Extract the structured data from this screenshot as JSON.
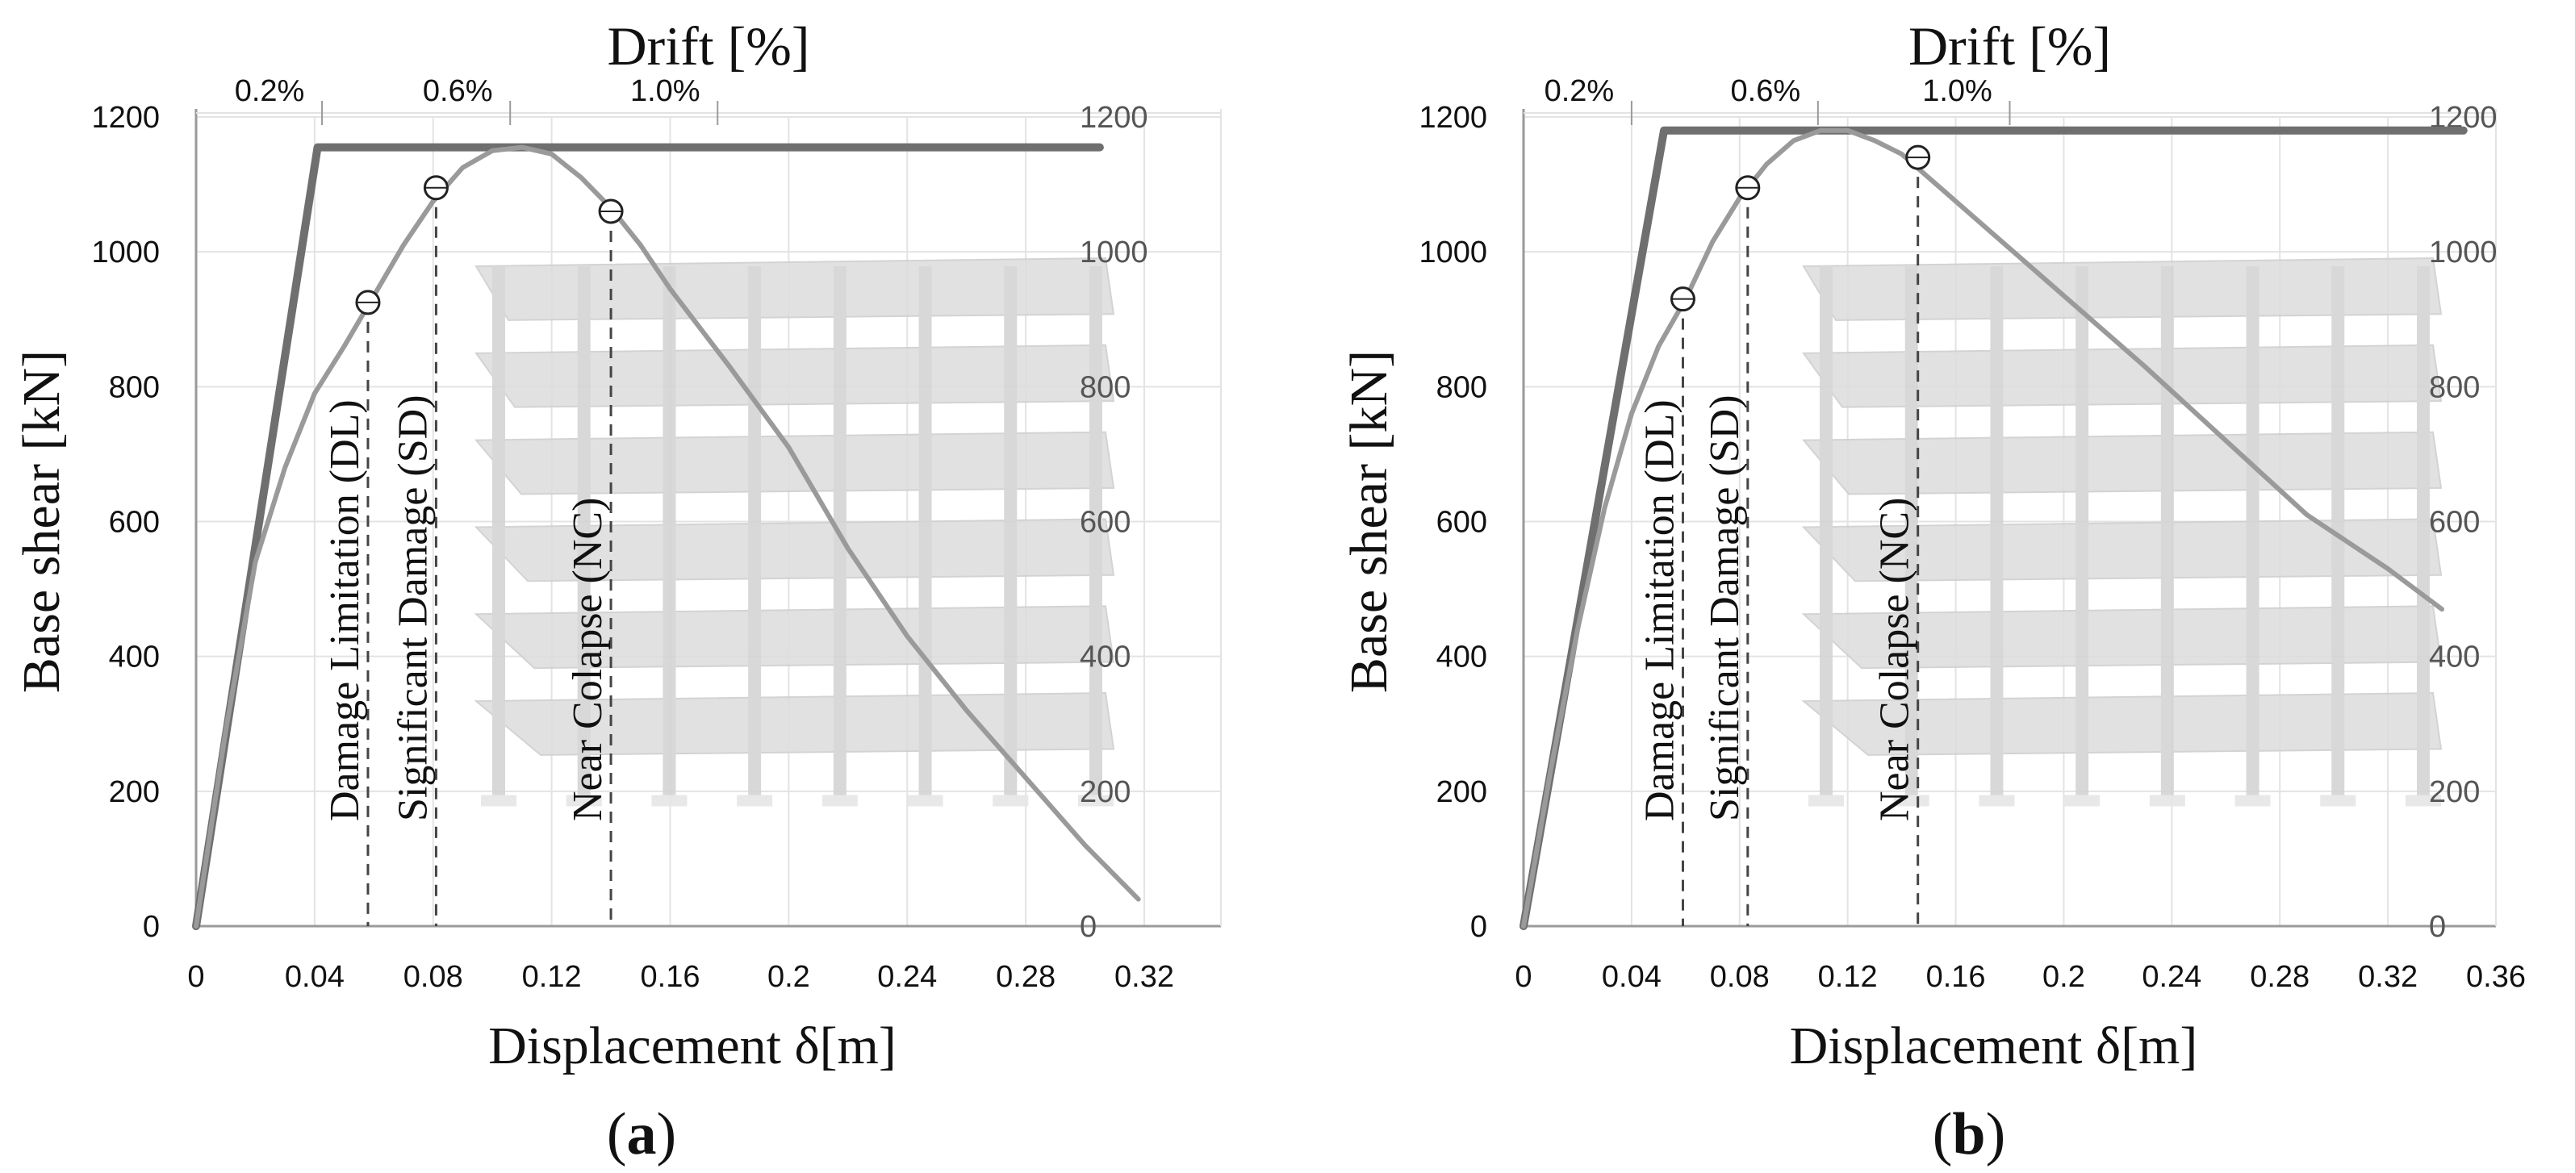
{
  "chart_data": [
    {
      "id": "a",
      "type": "line",
      "caption_letter": "a",
      "top_title": "Drift [%]",
      "xlabel": "Displacement δ[m]",
      "ylabel": "Base shear [kN]",
      "xlim": [
        0,
        0.32
      ],
      "ylim": [
        0,
        1200
      ],
      "x_ticks": [
        "0",
        "0.04",
        "0.08",
        "0.12",
        "0.16",
        "0.2",
        "0.24",
        "0.28",
        "0.32"
      ],
      "y_ticks": [
        "0",
        "200",
        "400",
        "600",
        "800",
        "1000",
        "1200"
      ],
      "y_ticks_right": [
        "0",
        "200",
        "400",
        "600",
        "800",
        "1000",
        "1200"
      ],
      "drift_ticks": [
        {
          "label": "0.2%",
          "x": 0.0425
        },
        {
          "label": "0.6%",
          "x": 0.106
        },
        {
          "label": "1.0%",
          "x": 0.176
        }
      ],
      "series": [
        {
          "style": "bilinear",
          "x": [
            0,
            0.041,
            0.305
          ],
          "y": [
            0,
            1155,
            1155
          ]
        },
        {
          "style": "capacity",
          "x": [
            0,
            0.01,
            0.02,
            0.03,
            0.04,
            0.05,
            0.06,
            0.07,
            0.08,
            0.09,
            0.1,
            0.11,
            0.12,
            0.13,
            0.14,
            0.15,
            0.16,
            0.18,
            0.2,
            0.22,
            0.24,
            0.26,
            0.28,
            0.3,
            0.318
          ],
          "y": [
            0,
            290,
            540,
            680,
            790,
            860,
            935,
            1010,
            1075,
            1125,
            1150,
            1155,
            1145,
            1110,
            1065,
            1010,
            945,
            830,
            710,
            560,
            430,
            320,
            220,
            120,
            40
          ]
        }
      ],
      "limit_states": [
        {
          "label": "Damage Limitation (DL)",
          "x": 0.058,
          "y": 925
        },
        {
          "label": "Significant Damage (SD)",
          "x": 0.081,
          "y": 1095
        },
        {
          "label": "Near Colapse (NC)",
          "x": 0.14,
          "y": 1060
        }
      ]
    },
    {
      "id": "b",
      "type": "line",
      "caption_letter": "b",
      "top_title": "Drift [%]",
      "xlabel": "Displacement δ[m]",
      "ylabel": "Base shear [kN]",
      "xlim": [
        0,
        0.36
      ],
      "ylim": [
        0,
        1200
      ],
      "x_ticks": [
        "0",
        "0.04",
        "0.08",
        "0.12",
        "0.16",
        "0.2",
        "0.24",
        "0.28",
        "0.32",
        "0.36"
      ],
      "y_ticks": [
        "0",
        "200",
        "400",
        "600",
        "800",
        "1000",
        "1200"
      ],
      "y_ticks_right": [
        "0",
        "200",
        "400",
        "600",
        "800",
        "1000",
        "1200"
      ],
      "drift_ticks": [
        {
          "label": "0.2%",
          "x": 0.04
        },
        {
          "label": "0.6%",
          "x": 0.109
        },
        {
          "label": "1.0%",
          "x": 0.18
        }
      ],
      "series": [
        {
          "style": "bilinear",
          "x": [
            0,
            0.052,
            0.348
          ],
          "y": [
            0,
            1180,
            1180
          ]
        },
        {
          "style": "capacity",
          "x": [
            0,
            0.01,
            0.02,
            0.03,
            0.04,
            0.05,
            0.06,
            0.07,
            0.08,
            0.09,
            0.1,
            0.11,
            0.12,
            0.13,
            0.14,
            0.15,
            0.17,
            0.2,
            0.23,
            0.26,
            0.29,
            0.32,
            0.34
          ],
          "y": [
            0,
            230,
            440,
            620,
            760,
            860,
            930,
            1015,
            1080,
            1130,
            1165,
            1180,
            1180,
            1165,
            1145,
            1110,
            1040,
            935,
            830,
            720,
            610,
            530,
            470
          ]
        }
      ],
      "limit_states": [
        {
          "label": "Damage Limitation (DL)",
          "x": 0.059,
          "y": 930
        },
        {
          "label": "Significant Damage (SD)",
          "x": 0.083,
          "y": 1095
        },
        {
          "label": "Near Colapse (NC)",
          "x": 0.146,
          "y": 1140
        }
      ]
    }
  ],
  "colors": {
    "bilinear": "#6f6f6f",
    "capacity": "#9a9a9a",
    "grid": "#e3e3e3",
    "axis": "#9a9a9a",
    "dashed": "#444444",
    "building": "#dedede"
  }
}
